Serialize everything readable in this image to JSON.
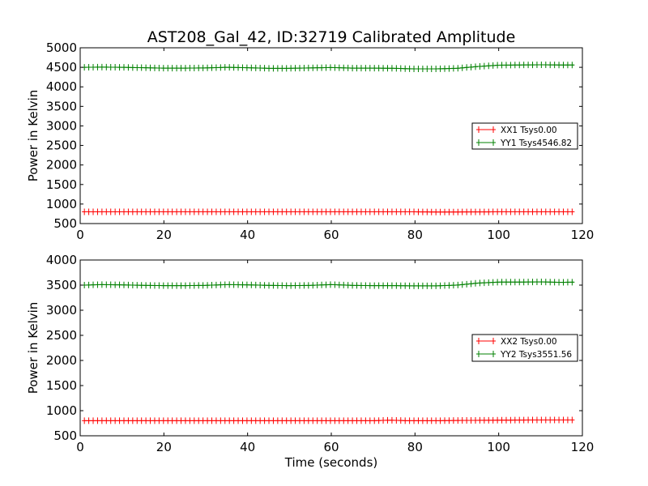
{
  "chart_data": [
    {
      "type": "line",
      "title": "AST208_Gal_42, ID:32719 Calibrated Amplitude",
      "xlabel": "",
      "ylabel": "Power in Kelvin",
      "xlim": [
        0,
        120
      ],
      "ylim": [
        500,
        5000
      ],
      "xticks": [
        "0",
        "20",
        "40",
        "60",
        "80",
        "100",
        "120"
      ],
      "yticks": [
        "500",
        "1000",
        "1500",
        "2000",
        "2500",
        "3000",
        "3500",
        "4000",
        "4500",
        "5000"
      ],
      "legend_position": "center-right",
      "grid": false,
      "series": [
        {
          "name": "XX1 Tsys0.00",
          "color": "#ff0000",
          "marker": "plus",
          "x": [
            1,
            20,
            40,
            60,
            80,
            86,
            100,
            118
          ],
          "y": [
            800,
            800,
            800,
            800,
            800,
            795,
            800,
            800
          ]
        },
        {
          "name": "YY1 Tsys4546.82",
          "color": "#008000",
          "marker": "plus",
          "x": [
            1,
            5,
            10,
            15,
            20,
            25,
            30,
            35,
            40,
            45,
            50,
            55,
            60,
            65,
            70,
            75,
            80,
            85,
            90,
            95,
            100,
            105,
            110,
            115,
            118
          ],
          "y": [
            4500,
            4505,
            4500,
            4490,
            4480,
            4480,
            4485,
            4500,
            4490,
            4475,
            4475,
            4485,
            4495,
            4480,
            4480,
            4475,
            4460,
            4460,
            4475,
            4520,
            4555,
            4560,
            4565,
            4560,
            4560
          ]
        }
      ]
    },
    {
      "type": "line",
      "title": "",
      "xlabel": "Time (seconds)",
      "ylabel": "Power in Kelvin",
      "xlim": [
        0,
        120
      ],
      "ylim": [
        500,
        4000
      ],
      "xticks": [
        "0",
        "20",
        "40",
        "60",
        "80",
        "100",
        "120"
      ],
      "yticks": [
        "500",
        "1000",
        "1500",
        "2000",
        "2500",
        "3000",
        "3500",
        "4000"
      ],
      "legend_position": "center-right",
      "grid": false,
      "series": [
        {
          "name": "XX2 Tsys0.00",
          "color": "#ff0000",
          "marker": "plus",
          "x": [
            1,
            20,
            40,
            60,
            70,
            74,
            78,
            85,
            90,
            100,
            110,
            118
          ],
          "y": [
            800,
            800,
            800,
            800,
            800,
            810,
            800,
            800,
            805,
            810,
            815,
            815
          ]
        },
        {
          "name": "YY2 Tsys3551.56",
          "color": "#008000",
          "marker": "plus",
          "x": [
            1,
            5,
            10,
            15,
            20,
            25,
            30,
            35,
            40,
            45,
            50,
            55,
            60,
            65,
            70,
            75,
            80,
            85,
            90,
            95,
            100,
            105,
            110,
            115,
            118
          ],
          "y": [
            3500,
            3510,
            3505,
            3495,
            3490,
            3490,
            3495,
            3510,
            3505,
            3495,
            3490,
            3495,
            3510,
            3495,
            3490,
            3490,
            3485,
            3485,
            3500,
            3540,
            3560,
            3560,
            3565,
            3555,
            3560
          ]
        }
      ]
    }
  ]
}
